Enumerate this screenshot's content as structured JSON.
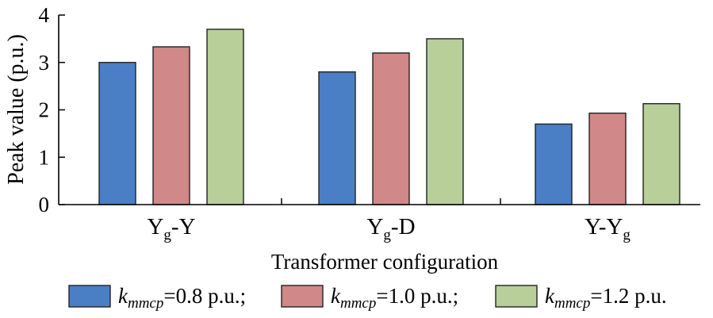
{
  "chart_data": {
    "type": "bar",
    "xlabel": "Transformer configuration",
    "ylabel": "Peak value (p.u.)",
    "ylim": [
      0,
      4
    ],
    "yticks": [
      0,
      1,
      2,
      3,
      4
    ],
    "grid": false,
    "legend_position": "bottom",
    "categories": [
      {
        "base": "Y",
        "sub": "g",
        "tail": "-Y"
      },
      {
        "base": "Y",
        "sub": "g",
        "tail": "-D"
      },
      {
        "base": "Y-Y",
        "sub": "g",
        "tail": ""
      }
    ],
    "series": [
      {
        "name": {
          "var": "k",
          "sub": "mmcp",
          "rest": "=0.8 p.u.;"
        },
        "color": "#4a7fc6",
        "values": [
          3.0,
          2.8,
          1.7
        ]
      },
      {
        "name": {
          "var": "k",
          "sub": "mmcp",
          "rest": "=1.0 p.u.;"
        },
        "color": "#d08888",
        "values": [
          3.33,
          3.2,
          1.93
        ]
      },
      {
        "name": {
          "var": "k",
          "sub": "mmcp",
          "rest": "=1.2 p.u."
        },
        "color": "#b8cf9a",
        "values": [
          3.7,
          3.5,
          2.13
        ]
      }
    ]
  }
}
